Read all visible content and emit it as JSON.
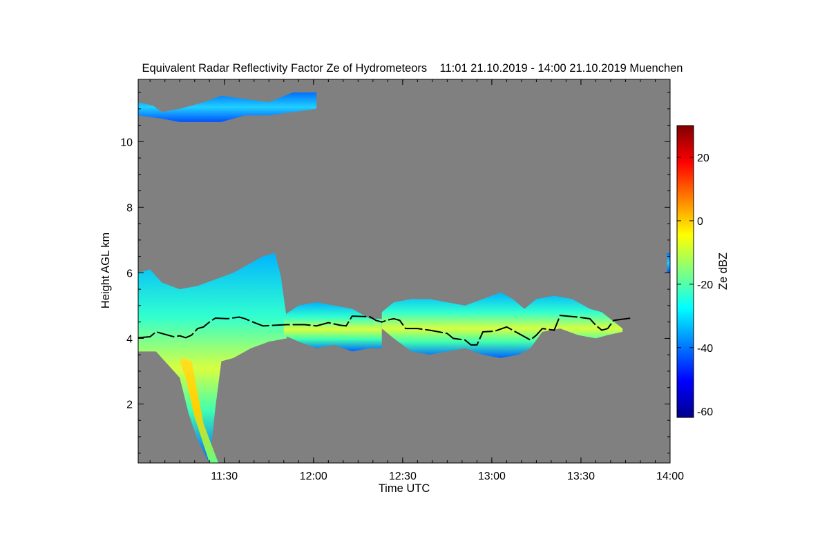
{
  "chart_data": {
    "type": "heatmap",
    "title": "Equivalent Radar Reflectivity Factor Ze of Hydrometeors    11:01 21.10.2019 - 14:00 21.10.2019 Muenchen",
    "xlabel": "Time UTC",
    "ylabel": "Height AGL km",
    "colorbar_label": "Ze dBZ",
    "x_start": "11:01",
    "x_end": "14:00",
    "x_range_minutes": [
      0,
      179
    ],
    "y_range_km": [
      0.2,
      11.9
    ],
    "x_ticks": [
      {
        "minute": 29,
        "label": "11:30"
      },
      {
        "minute": 59,
        "label": "12:00"
      },
      {
        "minute": 89,
        "label": "12:30"
      },
      {
        "minute": 119,
        "label": "13:00"
      },
      {
        "minute": 149,
        "label": "13:30"
      },
      {
        "minute": 179,
        "label": "14:00"
      }
    ],
    "y_ticks": [
      {
        "value": 2,
        "label": "2"
      },
      {
        "value": 4,
        "label": "4"
      },
      {
        "value": 6,
        "label": "6"
      },
      {
        "value": 8,
        "label": "8"
      },
      {
        "value": 10,
        "label": "10"
      }
    ],
    "colorbar_range": [
      -62,
      30
    ],
    "colorbar_ticks": [
      {
        "value": 20,
        "label": "20"
      },
      {
        "value": 0,
        "label": "0"
      },
      {
        "value": -20,
        "label": "-20"
      },
      {
        "value": -40,
        "label": "-40"
      },
      {
        "value": -60,
        "label": "-60"
      }
    ],
    "colormap": [
      "#00008f",
      "#0000ff",
      "#0080ff",
      "#00ffff",
      "#80ff80",
      "#ffff00",
      "#ff8000",
      "#ff0000",
      "#800000"
    ],
    "background_color": "#808080",
    "echo_regions": [
      {
        "name": "high-cirrus",
        "top": [
          [
            0,
            11.2
          ],
          [
            5,
            11.1
          ],
          [
            8,
            10.9
          ],
          [
            14,
            11.0
          ],
          [
            22,
            11.2
          ],
          [
            28,
            11.4
          ],
          [
            36,
            11.3
          ],
          [
            44,
            11.2
          ],
          [
            52,
            11.5
          ],
          [
            60,
            11.5
          ]
        ],
        "base": [
          [
            0,
            10.8
          ],
          [
            8,
            10.7
          ],
          [
            14,
            10.6
          ],
          [
            20,
            10.6
          ],
          [
            28,
            10.6
          ],
          [
            36,
            10.8
          ],
          [
            44,
            10.8
          ],
          [
            52,
            10.9
          ],
          [
            60,
            11.0
          ]
        ],
        "peak_dbz": -35
      },
      {
        "name": "main-layer-west",
        "top": [
          [
            0,
            6.0
          ],
          [
            4,
            6.1
          ],
          [
            8,
            5.7
          ],
          [
            14,
            5.5
          ],
          [
            20,
            5.6
          ],
          [
            26,
            5.8
          ],
          [
            32,
            6.0
          ],
          [
            38,
            6.3
          ],
          [
            42,
            6.5
          ],
          [
            46,
            6.6
          ],
          [
            48,
            5.9
          ],
          [
            50,
            4.6
          ]
        ],
        "base": [
          [
            0,
            3.6
          ],
          [
            6,
            3.6
          ],
          [
            10,
            3.2
          ],
          [
            14,
            2.8
          ],
          [
            17,
            1.7
          ],
          [
            20,
            0.9
          ],
          [
            24,
            0.2
          ],
          [
            26,
            1.9
          ],
          [
            28,
            3.3
          ],
          [
            32,
            3.4
          ],
          [
            38,
            3.7
          ],
          [
            44,
            3.9
          ],
          [
            50,
            4.0
          ]
        ],
        "peak_dbz": 8
      },
      {
        "name": "main-layer-middle",
        "top": [
          [
            49,
            4.7
          ],
          [
            54,
            5.0
          ],
          [
            60,
            5.1
          ],
          [
            66,
            5.0
          ],
          [
            72,
            4.9
          ],
          [
            78,
            4.6
          ],
          [
            82,
            4.6
          ]
        ],
        "base": [
          [
            49,
            4.1
          ],
          [
            54,
            3.9
          ],
          [
            60,
            3.7
          ],
          [
            66,
            3.8
          ],
          [
            72,
            3.6
          ],
          [
            78,
            3.7
          ],
          [
            82,
            3.7
          ]
        ],
        "peak_dbz": -10
      },
      {
        "name": "main-layer-east",
        "top": [
          [
            82,
            4.8
          ],
          [
            86,
            5.1
          ],
          [
            92,
            5.2
          ],
          [
            98,
            5.2
          ],
          [
            104,
            5.1
          ],
          [
            110,
            5.0
          ],
          [
            116,
            5.2
          ],
          [
            122,
            5.4
          ],
          [
            126,
            5.2
          ],
          [
            130,
            4.9
          ],
          [
            134,
            5.2
          ],
          [
            140,
            5.3
          ],
          [
            146,
            5.2
          ],
          [
            152,
            4.9
          ],
          [
            156,
            4.8
          ],
          [
            163,
            4.3
          ]
        ],
        "base": [
          [
            82,
            4.3
          ],
          [
            86,
            4.0
          ],
          [
            92,
            3.6
          ],
          [
            98,
            3.5
          ],
          [
            104,
            3.6
          ],
          [
            110,
            3.7
          ],
          [
            116,
            3.5
          ],
          [
            122,
            3.4
          ],
          [
            128,
            3.5
          ],
          [
            132,
            3.7
          ],
          [
            136,
            4.2
          ],
          [
            142,
            4.3
          ],
          [
            148,
            4.1
          ],
          [
            154,
            4.0
          ],
          [
            158,
            4.1
          ],
          [
            163,
            4.2
          ]
        ],
        "peak_dbz": -5
      },
      {
        "name": "east-edge-fragment",
        "top": [
          [
            178,
            6.6
          ],
          [
            179,
            6.6
          ]
        ],
        "base": [
          [
            178,
            6.0
          ],
          [
            179,
            6.0
          ]
        ],
        "peak_dbz": -30
      }
    ],
    "melting_layer_line": [
      [
        0,
        4.02
      ],
      [
        4,
        4.05
      ],
      [
        6,
        4.2
      ],
      [
        8,
        4.15
      ],
      [
        10,
        4.1
      ],
      [
        12,
        4.05
      ],
      [
        14,
        4.08
      ],
      [
        16,
        4.02
      ],
      [
        18,
        4.1
      ],
      [
        20,
        4.3
      ],
      [
        22,
        4.35
      ],
      [
        24,
        4.5
      ],
      [
        26,
        4.62
      ],
      [
        30,
        4.6
      ],
      [
        34,
        4.65
      ],
      [
        36,
        4.6
      ],
      [
        38,
        4.52
      ],
      [
        40,
        4.45
      ],
      [
        42,
        4.38
      ],
      [
        46,
        4.4
      ],
      [
        50,
        4.42
      ],
      [
        56,
        4.42
      ],
      [
        60,
        4.38
      ],
      [
        64,
        4.48
      ],
      [
        68,
        4.4
      ],
      [
        70,
        4.38
      ],
      [
        72,
        4.68
      ],
      [
        78,
        4.66
      ],
      [
        80,
        4.55
      ],
      [
        82,
        4.5
      ],
      [
        84,
        4.56
      ],
      [
        86,
        4.6
      ],
      [
        88,
        4.55
      ],
      [
        90,
        4.3
      ],
      [
        94,
        4.3
      ],
      [
        98,
        4.25
      ],
      [
        100,
        4.22
      ],
      [
        104,
        4.15
      ],
      [
        106,
        4.0
      ],
      [
        110,
        3.95
      ],
      [
        112,
        3.8
      ],
      [
        114,
        3.8
      ],
      [
        116,
        4.2
      ],
      [
        120,
        4.22
      ],
      [
        124,
        4.35
      ],
      [
        126,
        4.25
      ],
      [
        128,
        4.15
      ],
      [
        130,
        4.05
      ],
      [
        132,
        3.95
      ],
      [
        134,
        4.1
      ],
      [
        136,
        4.3
      ],
      [
        140,
        4.25
      ],
      [
        142,
        4.7
      ],
      [
        148,
        4.65
      ],
      [
        152,
        4.6
      ],
      [
        154,
        4.4
      ],
      [
        156,
        4.25
      ],
      [
        158,
        4.3
      ],
      [
        160,
        4.55
      ],
      [
        166,
        4.62
      ]
    ]
  }
}
